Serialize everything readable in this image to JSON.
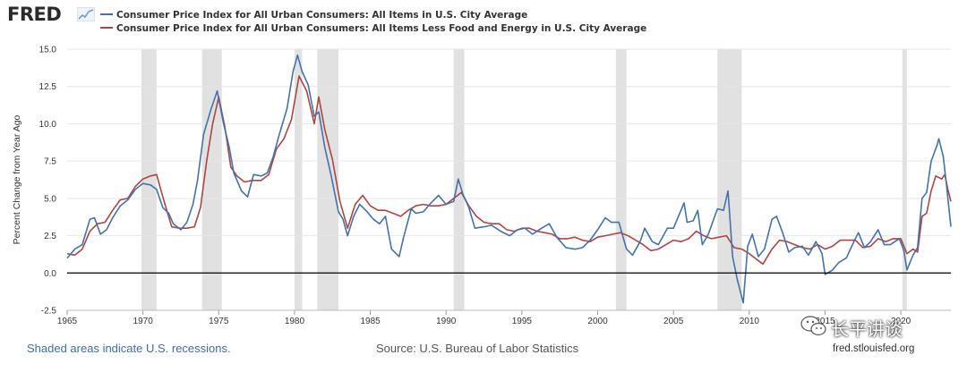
{
  "header": {
    "logo": "FRED",
    "logo_icon": "chart-line-icon"
  },
  "colors": {
    "cpi_all": "#4572a7",
    "cpi_core": "#aa4643",
    "recession": "#e1e1e1",
    "grid": "#e6e6e6",
    "footer_link": "#3f6ea6"
  },
  "footer": {
    "shaded_note": "Shaded areas indicate U.S. recessions.",
    "source": "Source: U.S. Bureau of Labor Statistics",
    "url": "fred.stlouisfed.org",
    "watermark": "长平讲谈"
  },
  "chart_data": {
    "type": "line",
    "ylabel": "Percent Change from Year Ago",
    "xlim": [
      1965,
      2023.3
    ],
    "ylim": [
      -2.5,
      15.0
    ],
    "y_ticks": [
      -2.5,
      0.0,
      2.5,
      5.0,
      7.5,
      10.0,
      12.5,
      15.0
    ],
    "y_tick_labels": [
      "-2.5",
      "0.0",
      "2.5",
      "5.0",
      "7.5",
      "10.0",
      "12.5",
      "15.0"
    ],
    "x_ticks": [
      1965,
      1970,
      1975,
      1980,
      1985,
      1990,
      1995,
      2000,
      2005,
      2010,
      2015,
      2020
    ],
    "x_tick_labels": [
      "1965",
      "1970",
      "1975",
      "1980",
      "1985",
      "1990",
      "1995",
      "2000",
      "2005",
      "2010",
      "2015",
      "2020"
    ],
    "grid": true,
    "legend_position": "top",
    "recessions": [
      [
        1969.9,
        1970.9
      ],
      [
        1973.9,
        1975.2
      ],
      [
        1980.0,
        1980.5
      ],
      [
        1981.5,
        1982.9
      ],
      [
        1990.5,
        1991.2
      ],
      [
        2001.2,
        2001.9
      ],
      [
        2007.9,
        2009.5
      ],
      [
        2020.1,
        2020.4
      ]
    ],
    "series": [
      {
        "name": "Consumer Price Index for All Urban Consumers: All Items in U.S. City Average",
        "color": "#4572a7",
        "points": [
          [
            1965.0,
            1.0
          ],
          [
            1965.5,
            1.6
          ],
          [
            1966.0,
            1.9
          ],
          [
            1966.5,
            3.6
          ],
          [
            1966.8,
            3.7
          ],
          [
            1967.2,
            2.6
          ],
          [
            1967.6,
            2.9
          ],
          [
            1968.0,
            3.7
          ],
          [
            1968.5,
            4.5
          ],
          [
            1969.0,
            4.9
          ],
          [
            1969.5,
            5.6
          ],
          [
            1970.0,
            6.0
          ],
          [
            1970.5,
            5.9
          ],
          [
            1970.9,
            5.6
          ],
          [
            1971.3,
            4.4
          ],
          [
            1971.7,
            4.0
          ],
          [
            1972.0,
            3.3
          ],
          [
            1972.5,
            2.9
          ],
          [
            1972.9,
            3.4
          ],
          [
            1973.3,
            4.6
          ],
          [
            1973.6,
            6.2
          ],
          [
            1974.0,
            9.3
          ],
          [
            1974.5,
            11.0
          ],
          [
            1974.9,
            12.2
          ],
          [
            1975.3,
            10.1
          ],
          [
            1975.7,
            8.4
          ],
          [
            1976.0,
            6.7
          ],
          [
            1976.5,
            5.5
          ],
          [
            1976.9,
            5.1
          ],
          [
            1977.3,
            6.6
          ],
          [
            1977.8,
            6.5
          ],
          [
            1978.2,
            6.7
          ],
          [
            1978.6,
            7.8
          ],
          [
            1979.0,
            9.3
          ],
          [
            1979.5,
            11.0
          ],
          [
            1979.9,
            13.5
          ],
          [
            1980.2,
            14.6
          ],
          [
            1980.5,
            13.5
          ],
          [
            1980.9,
            12.6
          ],
          [
            1981.3,
            10.5
          ],
          [
            1981.6,
            10.8
          ],
          [
            1982.0,
            8.4
          ],
          [
            1982.4,
            6.6
          ],
          [
            1982.9,
            4.1
          ],
          [
            1983.2,
            3.6
          ],
          [
            1983.5,
            2.5
          ],
          [
            1983.9,
            3.8
          ],
          [
            1984.3,
            4.6
          ],
          [
            1984.8,
            4.1
          ],
          [
            1985.2,
            3.6
          ],
          [
            1985.6,
            3.3
          ],
          [
            1986.0,
            3.8
          ],
          [
            1986.4,
            1.6
          ],
          [
            1986.9,
            1.1
          ],
          [
            1987.2,
            2.4
          ],
          [
            1987.7,
            4.3
          ],
          [
            1988.0,
            4.0
          ],
          [
            1988.5,
            4.1
          ],
          [
            1989.0,
            4.7
          ],
          [
            1989.5,
            5.2
          ],
          [
            1990.0,
            4.6
          ],
          [
            1990.5,
            4.8
          ],
          [
            1990.8,
            6.3
          ],
          [
            1991.1,
            5.3
          ],
          [
            1991.5,
            4.4
          ],
          [
            1991.9,
            3.0
          ],
          [
            1992.5,
            3.1
          ],
          [
            1993.0,
            3.2
          ],
          [
            1993.6,
            2.8
          ],
          [
            1994.2,
            2.5
          ],
          [
            1994.7,
            2.9
          ],
          [
            1995.2,
            3.0
          ],
          [
            1995.7,
            2.6
          ],
          [
            1996.3,
            3.0
          ],
          [
            1996.8,
            3.3
          ],
          [
            1997.3,
            2.4
          ],
          [
            1997.9,
            1.7
          ],
          [
            1998.5,
            1.6
          ],
          [
            1999.0,
            1.7
          ],
          [
            1999.5,
            2.2
          ],
          [
            2000.0,
            2.9
          ],
          [
            2000.5,
            3.7
          ],
          [
            2000.9,
            3.4
          ],
          [
            2001.4,
            3.4
          ],
          [
            2001.9,
            1.6
          ],
          [
            2002.3,
            1.2
          ],
          [
            2002.8,
            2.1
          ],
          [
            2003.1,
            3.0
          ],
          [
            2003.6,
            2.1
          ],
          [
            2004.0,
            1.9
          ],
          [
            2004.6,
            3.0
          ],
          [
            2005.0,
            3.0
          ],
          [
            2005.7,
            4.7
          ],
          [
            2005.9,
            3.4
          ],
          [
            2006.3,
            3.5
          ],
          [
            2006.6,
            4.2
          ],
          [
            2006.9,
            1.9
          ],
          [
            2007.3,
            2.6
          ],
          [
            2007.9,
            4.3
          ],
          [
            2008.3,
            4.2
          ],
          [
            2008.6,
            5.5
          ],
          [
            2008.9,
            1.1
          ],
          [
            2009.2,
            -0.4
          ],
          [
            2009.6,
            -2.0
          ],
          [
            2009.9,
            1.8
          ],
          [
            2010.2,
            2.6
          ],
          [
            2010.6,
            1.1
          ],
          [
            2011.0,
            1.6
          ],
          [
            2011.5,
            3.6
          ],
          [
            2011.8,
            3.8
          ],
          [
            2012.2,
            2.7
          ],
          [
            2012.6,
            1.4
          ],
          [
            2013.0,
            1.7
          ],
          [
            2013.5,
            1.8
          ],
          [
            2013.9,
            1.2
          ],
          [
            2014.4,
            2.1
          ],
          [
            2014.8,
            1.3
          ],
          [
            2015.0,
            -0.1
          ],
          [
            2015.5,
            0.2
          ],
          [
            2015.9,
            0.7
          ],
          [
            2016.4,
            1.0
          ],
          [
            2016.9,
            2.1
          ],
          [
            2017.2,
            2.7
          ],
          [
            2017.6,
            1.7
          ],
          [
            2018.0,
            2.1
          ],
          [
            2018.5,
            2.9
          ],
          [
            2018.9,
            1.9
          ],
          [
            2019.3,
            1.9
          ],
          [
            2019.9,
            2.3
          ],
          [
            2020.2,
            1.5
          ],
          [
            2020.4,
            0.2
          ],
          [
            2020.8,
            1.2
          ],
          [
            2021.1,
            1.7
          ],
          [
            2021.4,
            5.0
          ],
          [
            2021.7,
            5.4
          ],
          [
            2022.0,
            7.5
          ],
          [
            2022.4,
            8.6
          ],
          [
            2022.5,
            9.0
          ],
          [
            2022.8,
            7.8
          ],
          [
            2023.0,
            6.0
          ],
          [
            2023.3,
            3.1
          ]
        ]
      },
      {
        "name": "Consumer Price Index for All Urban Consumers: All Items Less Food and Energy in U.S. City Average",
        "color": "#aa4643",
        "points": [
          [
            1965.0,
            1.3
          ],
          [
            1965.5,
            1.2
          ],
          [
            1966.0,
            1.6
          ],
          [
            1966.5,
            2.8
          ],
          [
            1967.0,
            3.3
          ],
          [
            1967.5,
            3.4
          ],
          [
            1968.0,
            4.2
          ],
          [
            1968.5,
            4.9
          ],
          [
            1969.0,
            5.0
          ],
          [
            1969.5,
            5.8
          ],
          [
            1970.0,
            6.3
          ],
          [
            1970.5,
            6.5
          ],
          [
            1970.9,
            6.6
          ],
          [
            1971.4,
            4.8
          ],
          [
            1971.9,
            3.1
          ],
          [
            1972.4,
            3.0
          ],
          [
            1972.9,
            3.0
          ],
          [
            1973.4,
            3.1
          ],
          [
            1973.8,
            4.4
          ],
          [
            1974.2,
            7.5
          ],
          [
            1974.6,
            10.0
          ],
          [
            1975.0,
            11.8
          ],
          [
            1975.4,
            9.8
          ],
          [
            1975.8,
            7.1
          ],
          [
            1976.2,
            6.5
          ],
          [
            1976.7,
            6.1
          ],
          [
            1977.2,
            6.2
          ],
          [
            1977.8,
            6.2
          ],
          [
            1978.3,
            6.6
          ],
          [
            1978.8,
            8.3
          ],
          [
            1979.3,
            9.0
          ],
          [
            1979.8,
            10.3
          ],
          [
            1980.3,
            13.2
          ],
          [
            1980.8,
            12.2
          ],
          [
            1981.3,
            10.0
          ],
          [
            1981.6,
            11.8
          ],
          [
            1982.0,
            9.6
          ],
          [
            1982.5,
            7.6
          ],
          [
            1983.0,
            4.8
          ],
          [
            1983.5,
            3.0
          ],
          [
            1984.0,
            4.6
          ],
          [
            1984.5,
            5.2
          ],
          [
            1985.0,
            4.5
          ],
          [
            1985.5,
            4.2
          ],
          [
            1986.0,
            4.2
          ],
          [
            1986.5,
            4.0
          ],
          [
            1987.0,
            3.8
          ],
          [
            1987.5,
            4.2
          ],
          [
            1988.0,
            4.5
          ],
          [
            1988.5,
            4.6
          ],
          [
            1989.0,
            4.5
          ],
          [
            1989.5,
            4.5
          ],
          [
            1990.0,
            4.6
          ],
          [
            1990.5,
            5.0
          ],
          [
            1991.0,
            5.4
          ],
          [
            1991.5,
            4.5
          ],
          [
            1992.0,
            3.8
          ],
          [
            1992.5,
            3.4
          ],
          [
            1993.0,
            3.3
          ],
          [
            1993.5,
            3.3
          ],
          [
            1994.0,
            2.9
          ],
          [
            1994.5,
            2.8
          ],
          [
            1995.0,
            3.0
          ],
          [
            1995.5,
            3.0
          ],
          [
            1996.0,
            2.8
          ],
          [
            1996.5,
            2.7
          ],
          [
            1997.0,
            2.6
          ],
          [
            1997.5,
            2.3
          ],
          [
            1998.0,
            2.3
          ],
          [
            1998.5,
            2.4
          ],
          [
            1999.0,
            2.2
          ],
          [
            1999.5,
            2.1
          ],
          [
            2000.0,
            2.4
          ],
          [
            2000.5,
            2.5
          ],
          [
            2001.0,
            2.6
          ],
          [
            2001.5,
            2.7
          ],
          [
            2002.0,
            2.5
          ],
          [
            2002.5,
            2.2
          ],
          [
            2003.0,
            1.9
          ],
          [
            2003.5,
            1.5
          ],
          [
            2004.0,
            1.6
          ],
          [
            2004.5,
            1.9
          ],
          [
            2005.0,
            2.2
          ],
          [
            2005.5,
            2.1
          ],
          [
            2006.0,
            2.3
          ],
          [
            2006.5,
            2.8
          ],
          [
            2007.0,
            2.5
          ],
          [
            2007.5,
            2.3
          ],
          [
            2008.0,
            2.4
          ],
          [
            2008.5,
            2.5
          ],
          [
            2009.0,
            1.7
          ],
          [
            2009.5,
            1.6
          ],
          [
            2010.0,
            1.3
          ],
          [
            2010.5,
            0.9
          ],
          [
            2010.9,
            0.6
          ],
          [
            2011.5,
            1.6
          ],
          [
            2012.0,
            2.2
          ],
          [
            2012.5,
            2.1
          ],
          [
            2013.0,
            1.9
          ],
          [
            2013.5,
            1.7
          ],
          [
            2014.0,
            1.6
          ],
          [
            2014.5,
            1.9
          ],
          [
            2015.0,
            1.6
          ],
          [
            2015.5,
            1.8
          ],
          [
            2016.0,
            2.2
          ],
          [
            2016.5,
            2.2
          ],
          [
            2017.0,
            2.2
          ],
          [
            2017.5,
            1.7
          ],
          [
            2018.0,
            1.8
          ],
          [
            2018.5,
            2.3
          ],
          [
            2019.0,
            2.1
          ],
          [
            2019.5,
            2.3
          ],
          [
            2020.0,
            2.3
          ],
          [
            2020.4,
            1.3
          ],
          [
            2020.8,
            1.6
          ],
          [
            2021.1,
            1.4
          ],
          [
            2021.4,
            3.8
          ],
          [
            2021.7,
            4.0
          ],
          [
            2022.0,
            5.5
          ],
          [
            2022.3,
            6.5
          ],
          [
            2022.7,
            6.3
          ],
          [
            2022.9,
            6.6
          ],
          [
            2023.1,
            5.6
          ],
          [
            2023.3,
            4.8
          ]
        ]
      }
    ]
  }
}
